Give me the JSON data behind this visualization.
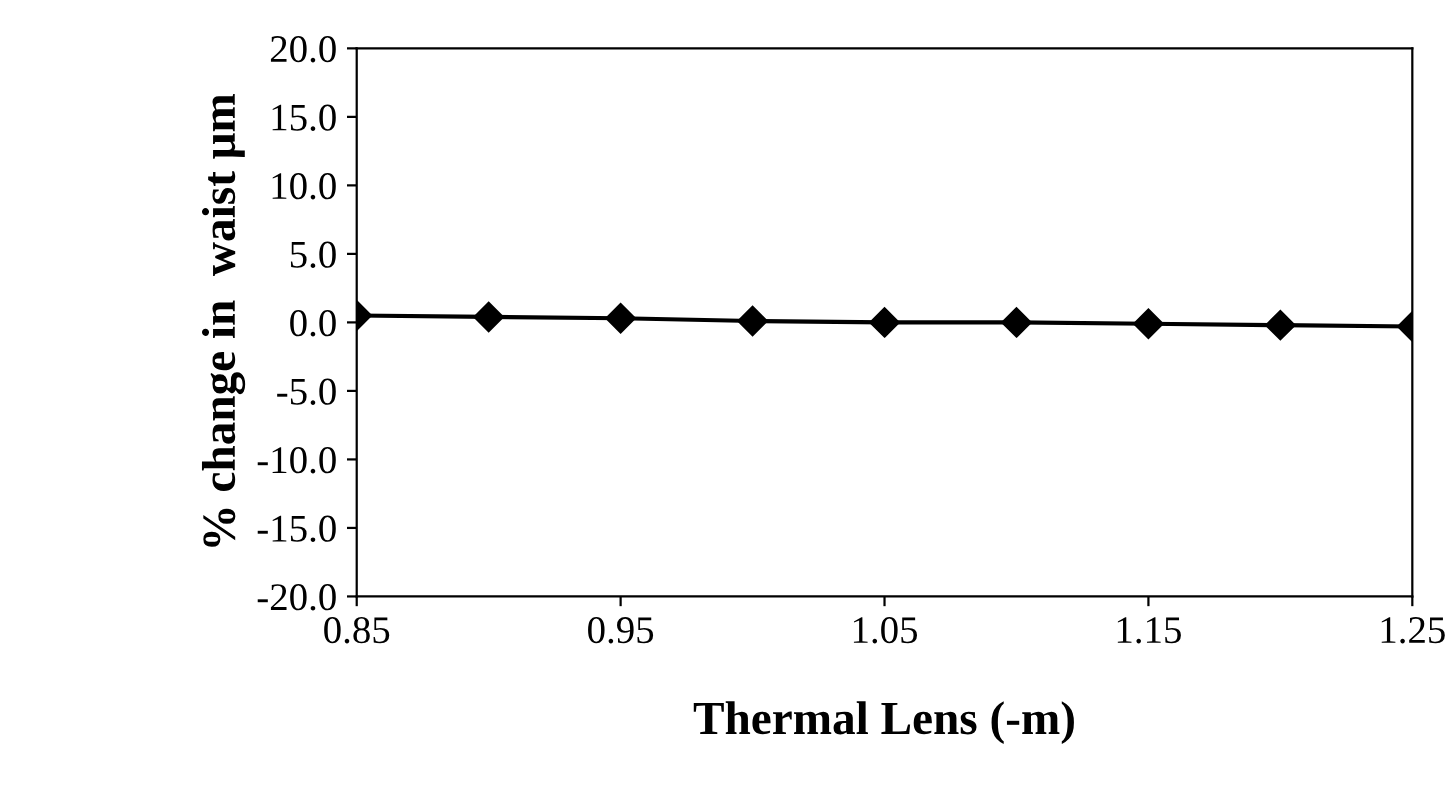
{
  "chart_data": {
    "type": "line",
    "xlabel": "Thermal Lens (-m)",
    "ylabel": "% change in  waist μm",
    "x": [
      0.85,
      0.9,
      0.95,
      1.0,
      1.05,
      1.1,
      1.15,
      1.2,
      1.25
    ],
    "series": [
      {
        "color": "#000000",
        "values": [
          0.5,
          0.4,
          0.3,
          0.1,
          0.0,
          0.0,
          -0.1,
          -0.2,
          -0.3
        ]
      }
    ],
    "marker": "diamond",
    "line_style": "solid",
    "xlim": [
      0.85,
      1.25
    ],
    "xticks": [
      {
        "value": 0.85,
        "label": "0.85"
      },
      {
        "value": 0.95,
        "label": "0.95"
      },
      {
        "value": 1.05,
        "label": "1.05"
      },
      {
        "value": 1.15,
        "label": "1.15"
      },
      {
        "value": 1.25,
        "label": "1.25"
      }
    ],
    "ylim": [
      -20,
      20
    ],
    "yticks": [
      {
        "value": -20,
        "label": "-20.0"
      },
      {
        "value": -15,
        "label": "-15.0"
      },
      {
        "value": -10,
        "label": "-10.0"
      },
      {
        "value": -5,
        "label": "-5.0"
      },
      {
        "value": 0,
        "label": "0.0"
      },
      {
        "value": 5,
        "label": "5.0"
      },
      {
        "value": 10,
        "label": "10.0"
      },
      {
        "value": 15,
        "label": "15.0"
      },
      {
        "value": 20,
        "label": "20.0"
      }
    ],
    "grid": false,
    "legend": false
  }
}
